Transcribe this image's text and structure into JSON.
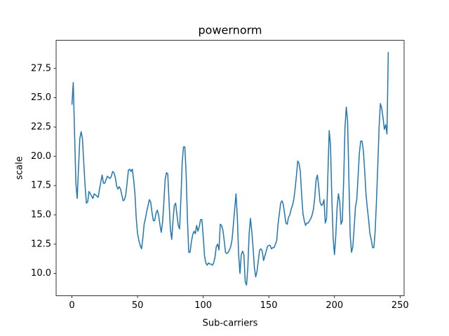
{
  "chart_data": {
    "type": "line",
    "title": "powernorm",
    "x_label": "Sub-carriers",
    "y_label": "scale",
    "color": "#1f77b4",
    "x": [
      0,
      1,
      2,
      3,
      4,
      5,
      6,
      7,
      8,
      9,
      10,
      11,
      12,
      13,
      14,
      15,
      16,
      17,
      18,
      19,
      20,
      21,
      22,
      23,
      24,
      25,
      26,
      27,
      28,
      29,
      30,
      31,
      32,
      33,
      34,
      35,
      36,
      37,
      38,
      39,
      40,
      41,
      42,
      43,
      44,
      45,
      46,
      47,
      48,
      49,
      50,
      51,
      52,
      53,
      54,
      55,
      56,
      57,
      58,
      59,
      60,
      61,
      62,
      63,
      64,
      65,
      66,
      67,
      68,
      69,
      70,
      71,
      72,
      73,
      74,
      75,
      76,
      77,
      78,
      79,
      80,
      81,
      82,
      83,
      84,
      85,
      86,
      87,
      88,
      89,
      90,
      91,
      92,
      93,
      94,
      95,
      96,
      97,
      98,
      99,
      100,
      101,
      102,
      103,
      104,
      105,
      106,
      107,
      108,
      109,
      110,
      111,
      112,
      113,
      114,
      115,
      116,
      117,
      118,
      119,
      120,
      121,
      122,
      123,
      124,
      125,
      126,
      127,
      128,
      129,
      130,
      131,
      132,
      133,
      134,
      135,
      136,
      137,
      138,
      139,
      140,
      141,
      142,
      143,
      144,
      145,
      146,
      147,
      148,
      149,
      150,
      151,
      152,
      153,
      154,
      155,
      156,
      157,
      158,
      159,
      160,
      161,
      162,
      163,
      164,
      165,
      166,
      167,
      168,
      169,
      170,
      171,
      172,
      173,
      174,
      175,
      176,
      177,
      178,
      179,
      180,
      181,
      182,
      183,
      184,
      185,
      186,
      187,
      188,
      189,
      190,
      191,
      192,
      193,
      194,
      195,
      196,
      197,
      198,
      199,
      200,
      201,
      202,
      203,
      204,
      205,
      206,
      207,
      208,
      209,
      210,
      211,
      212,
      213,
      214,
      215,
      216,
      217,
      218,
      219,
      220,
      221,
      222,
      223,
      224,
      225,
      226,
      227,
      228,
      229,
      230,
      231,
      232,
      233,
      234,
      235,
      236,
      237,
      238,
      239,
      240,
      241
    ],
    "values": [
      24.4,
      26.3,
      22,
      17.7,
      16.4,
      19,
      21.5,
      22.1,
      21.5,
      19.5,
      17.5,
      16,
      16.1,
      17,
      16.8,
      16.6,
      16.4,
      16.8,
      16.7,
      16.6,
      16.5,
      17.2,
      17.8,
      18.4,
      17.7,
      17.7,
      18,
      18.3,
      18.2,
      18.1,
      18.3,
      18.7,
      18.6,
      18.2,
      17.5,
      17.2,
      17.4,
      17.2,
      16.7,
      16.2,
      16.3,
      16.7,
      17.7,
      18.8,
      18.9,
      18.7,
      18.9,
      18,
      16.8,
      14.7,
      13.4,
      12.8,
      12.4,
      12.1,
      13,
      14.2,
      14.7,
      15.3,
      15.8,
      16.3,
      16.1,
      15.2,
      14.5,
      14.5,
      15.1,
      15.4,
      15,
      14.2,
      13.5,
      14.3,
      16,
      18,
      18.6,
      18.5,
      16.1,
      13.8,
      12.9,
      14.5,
      15.8,
      16,
      15,
      14.1,
      13.8,
      16.3,
      19.5,
      20.8,
      20.8,
      18.5,
      14.6,
      11.8,
      11.8,
      12.7,
      13.3,
      13.6,
      13.4,
      14.1,
      13.6,
      14,
      14.6,
      14.6,
      13.2,
      11.5,
      10.9,
      10.7,
      10.9,
      10.8,
      10.8,
      10.7,
      10.9,
      11.4,
      12.3,
      12.5,
      12,
      14.2,
      14.1,
      13.7,
      12.8,
      11.8,
      11.7,
      11.8,
      12,
      12.3,
      12.9,
      14.2,
      15.5,
      16.8,
      14.8,
      11.6,
      10,
      11.6,
      11.9,
      11.6,
      9.3,
      9,
      10.5,
      13.4,
      14.7,
      13.6,
      12.2,
      10.5,
      9.7,
      10.2,
      11.1,
      12,
      12.1,
      11.9,
      11.1,
      11.5,
      11.9,
      12.3,
      12.4,
      12.4,
      12.1,
      12.2,
      12.2,
      12.5,
      12.8,
      14.2,
      15.1,
      16,
      16.2,
      15.9,
      15.1,
      14.3,
      14.2,
      14.8,
      15,
      15.5,
      15.8,
      16.3,
      17.2,
      18.3,
      19.6,
      19.4,
      18.7,
      16.7,
      15.1,
      14.5,
      14.1,
      14.3,
      14.3,
      14.5,
      14.7,
      15,
      15.5,
      16.5,
      18,
      18.4,
      17.4,
      16.1,
      15.8,
      15.9,
      16.3,
      14.3,
      14.7,
      18.5,
      22.2,
      20.9,
      16.4,
      13,
      11.6,
      13.2,
      15.6,
      16.8,
      16.1,
      14.2,
      14.5,
      17.9,
      22.4,
      24.2,
      23,
      18,
      13.2,
      11.8,
      12.3,
      13.9,
      15.7,
      16.3,
      18.3,
      20.3,
      21.3,
      21.3,
      20.5,
      18.8,
      16.8,
      15.6,
      14.6,
      13.4,
      12.9,
      12.2,
      12.2,
      13.6,
      16.2,
      19.2,
      22.5,
      24.5,
      24.1,
      23.3,
      22.3,
      22.7,
      21.9,
      28.9
    ],
    "xlim": [
      -12.05,
      253.05
    ],
    "xticks": [
      0,
      50,
      100,
      150,
      200,
      250
    ],
    "ylim": [
      8.1,
      29.9
    ],
    "yticks": [
      {
        "value": 10,
        "label": "10.0"
      },
      12.5,
      {
        "value": 15,
        "label": "15.0"
      },
      17.5,
      {
        "value": 20,
        "label": "20.0"
      },
      22.5,
      {
        "value": 25,
        "label": "25.0"
      },
      27.5
    ],
    "grid": false
  }
}
